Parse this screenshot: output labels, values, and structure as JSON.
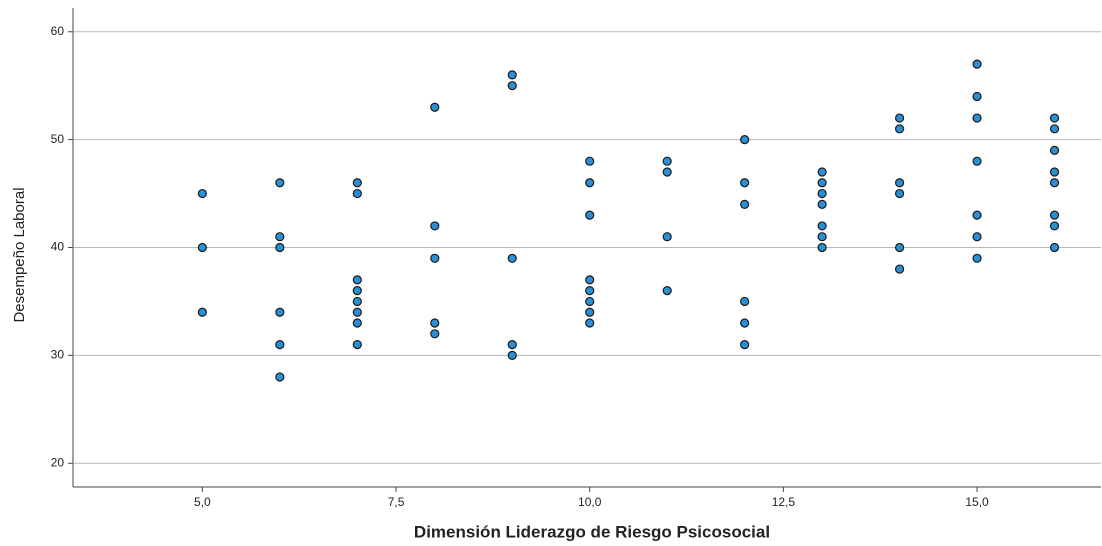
{
  "chart_data": {
    "type": "scatter",
    "x_label": "Dimensión Liderazgo de Riesgo Psicosocial",
    "y_label": "Desempeño Laboral",
    "x": [
      5,
      5,
      5,
      6,
      6,
      6,
      6,
      6,
      6,
      7,
      7,
      7,
      7,
      7,
      7,
      7,
      7,
      8,
      8,
      8,
      8,
      8,
      9,
      9,
      9,
      9,
      9,
      10,
      10,
      10,
      10,
      10,
      10,
      10,
      10,
      11,
      11,
      11,
      11,
      12,
      12,
      12,
      12,
      12,
      12,
      13,
      13,
      13,
      13,
      13,
      13,
      13,
      14,
      14,
      14,
      14,
      14,
      14,
      15,
      15,
      15,
      15,
      15,
      15,
      15,
      16,
      16,
      16,
      16,
      16,
      16,
      16,
      16
    ],
    "values": [
      45,
      40,
      34,
      46,
      41,
      40,
      34,
      31,
      28,
      46,
      45,
      37,
      36,
      35,
      34,
      33,
      31,
      53,
      42,
      39,
      33,
      32,
      56,
      55,
      39,
      31,
      30,
      48,
      46,
      43,
      37,
      36,
      35,
      34,
      33,
      48,
      47,
      41,
      36,
      50,
      46,
      44,
      35,
      33,
      31,
      47,
      46,
      45,
      44,
      42,
      41,
      40,
      52,
      51,
      46,
      45,
      40,
      38,
      57,
      54,
      52,
      48,
      43,
      41,
      39,
      52,
      51,
      49,
      47,
      46,
      43,
      42,
      40
    ],
    "color": "#2b8fd6",
    "xlim": [
      3.33,
      16.6
    ],
    "ylim": [
      17.8,
      62.2
    ],
    "xticks": [
      {
        "value": 5,
        "label": "5,0"
      },
      {
        "value": 7.5,
        "label": "7,5"
      },
      {
        "value": 10,
        "label": "10,0"
      },
      {
        "value": 12.5,
        "label": "12,5"
      },
      {
        "value": 15,
        "label": "15,0"
      }
    ],
    "yticks": [
      20,
      30,
      40,
      50,
      60
    ],
    "grid": true
  }
}
